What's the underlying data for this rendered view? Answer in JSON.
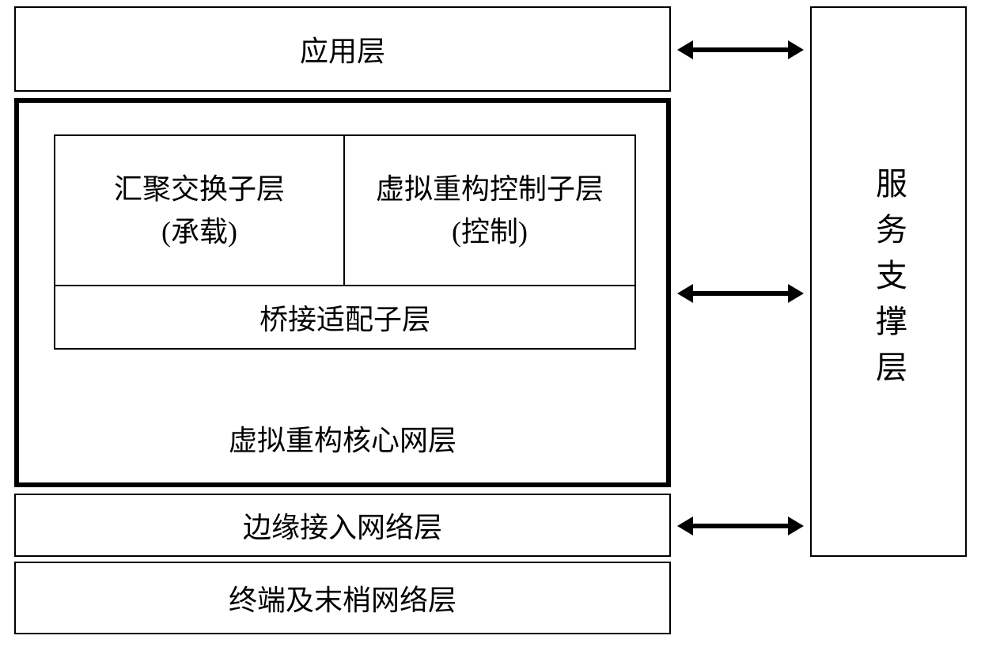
{
  "diagram": {
    "type": "layered-architecture",
    "background_color": "#ffffff",
    "border_color": "#000000",
    "text_color": "#000000",
    "font_family": "SimSun",
    "base_fontsize": 36,
    "left_stack": {
      "application_layer": {
        "label": "应用层"
      },
      "core_layer": {
        "title": "虚拟重构核心网层",
        "border_width": 6,
        "sublayers": {
          "top_left": {
            "line1": "汇聚交换子层",
            "line2": "(承载)"
          },
          "top_right": {
            "line1": "虚拟重构控制子层",
            "line2": "(控制)"
          },
          "bottom": {
            "label": "桥接适配子层"
          }
        }
      },
      "edge_layer": {
        "label": "边缘接入网络层"
      },
      "terminal_layer": {
        "label": "终端及末梢网络层"
      }
    },
    "service_layer": {
      "label": "服务支撑层",
      "fontsize": 40
    },
    "arrows": {
      "style": "bidirectional",
      "color": "#000000",
      "count": 3,
      "connects": [
        {
          "from": "application_layer",
          "to": "service_layer"
        },
        {
          "from": "core_layer",
          "to": "service_layer"
        },
        {
          "from": "edge_layer",
          "to": "service_layer"
        }
      ]
    },
    "layout": {
      "total_width": 1240,
      "total_height": 818,
      "left_stack_width": 830,
      "service_layer_width": 198,
      "service_layer_height": 696,
      "arrow_gap": 176
    }
  }
}
